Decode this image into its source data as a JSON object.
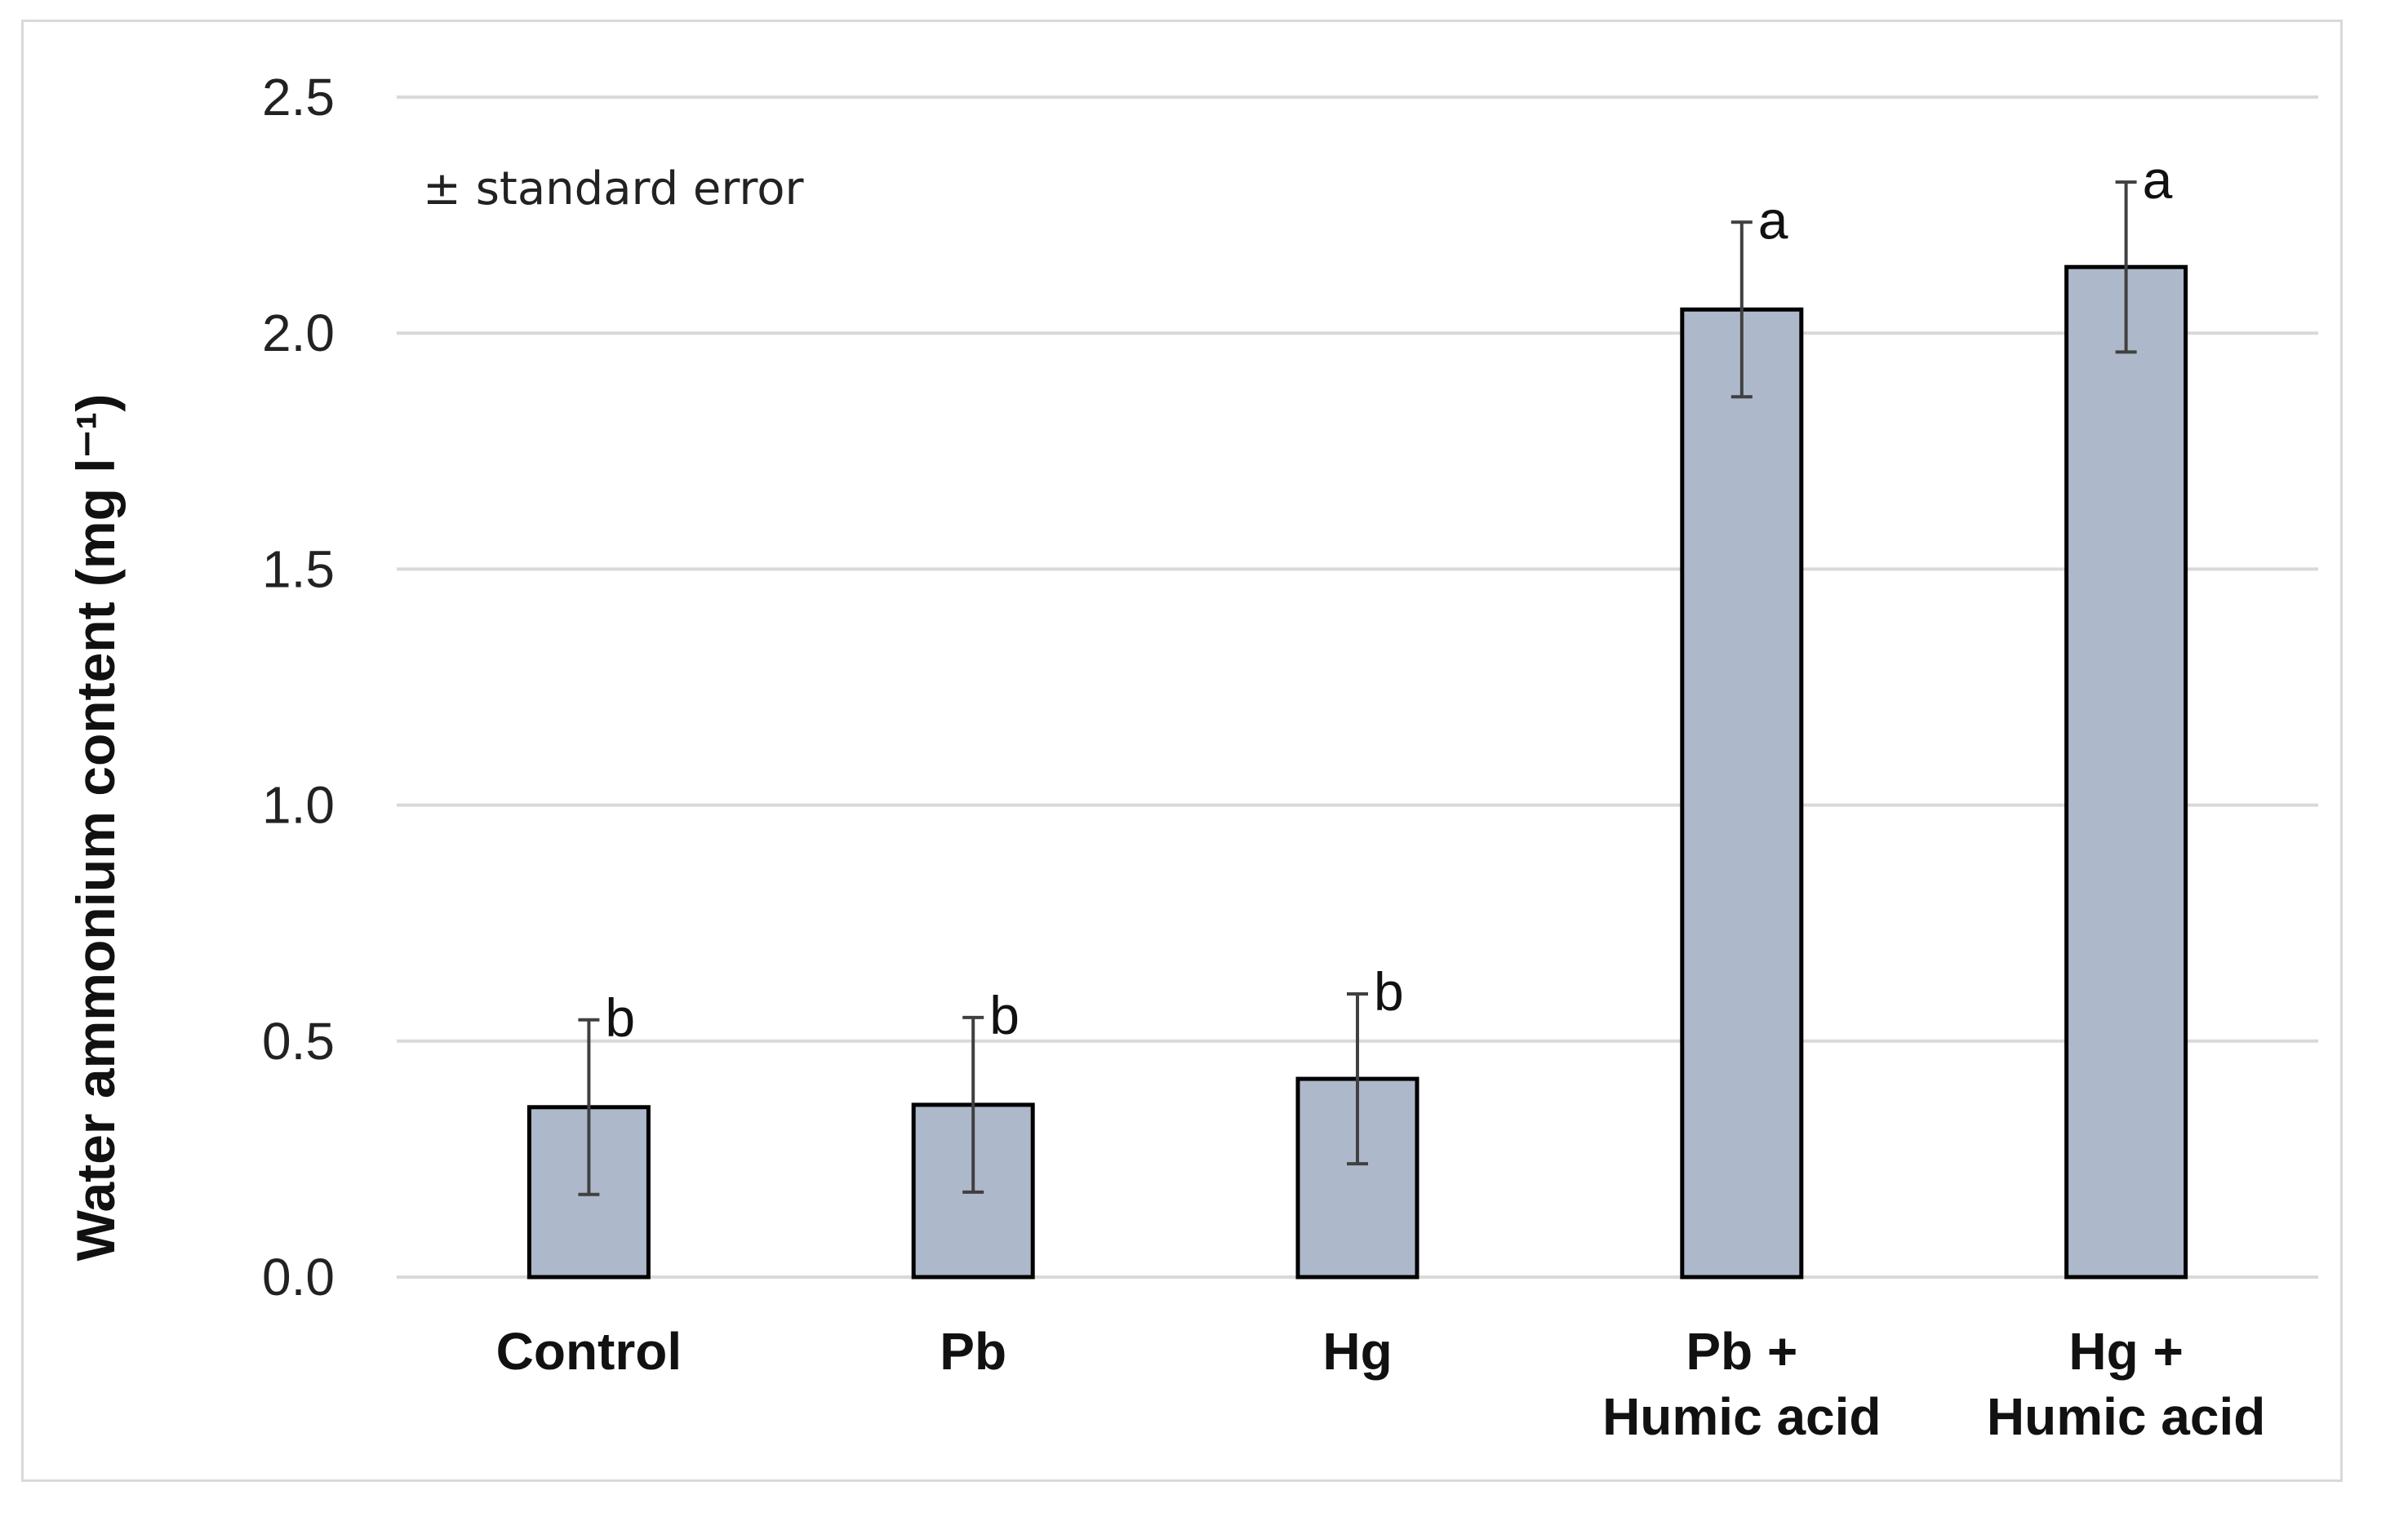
{
  "chart_data": {
    "type": "bar",
    "title": "",
    "xlabel": "",
    "ylabel": "Water ammonium content (mg l⁻¹)",
    "ylim": [
      0,
      2.5
    ],
    "yticks": [
      "0.0",
      "0.5",
      "1.0",
      "1.5",
      "2.0",
      "2.5"
    ],
    "ytick_values": [
      0,
      0.5,
      1.0,
      1.5,
      2.0,
      2.5
    ],
    "grid": true,
    "annotation": "± standard error",
    "categories": [
      [
        "Control"
      ],
      [
        "Pb"
      ],
      [
        "Hg"
      ],
      [
        "Pb +",
        "Humic acid"
      ],
      [
        "Hg +",
        "Humic acid"
      ]
    ],
    "values": [
      0.36,
      0.365,
      0.42,
      2.05,
      2.14
    ],
    "errors": [
      0.185,
      0.185,
      0.18,
      0.185,
      0.18
    ],
    "significance_letters": [
      "b",
      "b",
      "b",
      "a",
      "a"
    ],
    "bar_color": "#adb9ca",
    "bar_edge_color": "#000000",
    "grid_color": "#d9d9d9",
    "error_bar_color": "#404040"
  }
}
